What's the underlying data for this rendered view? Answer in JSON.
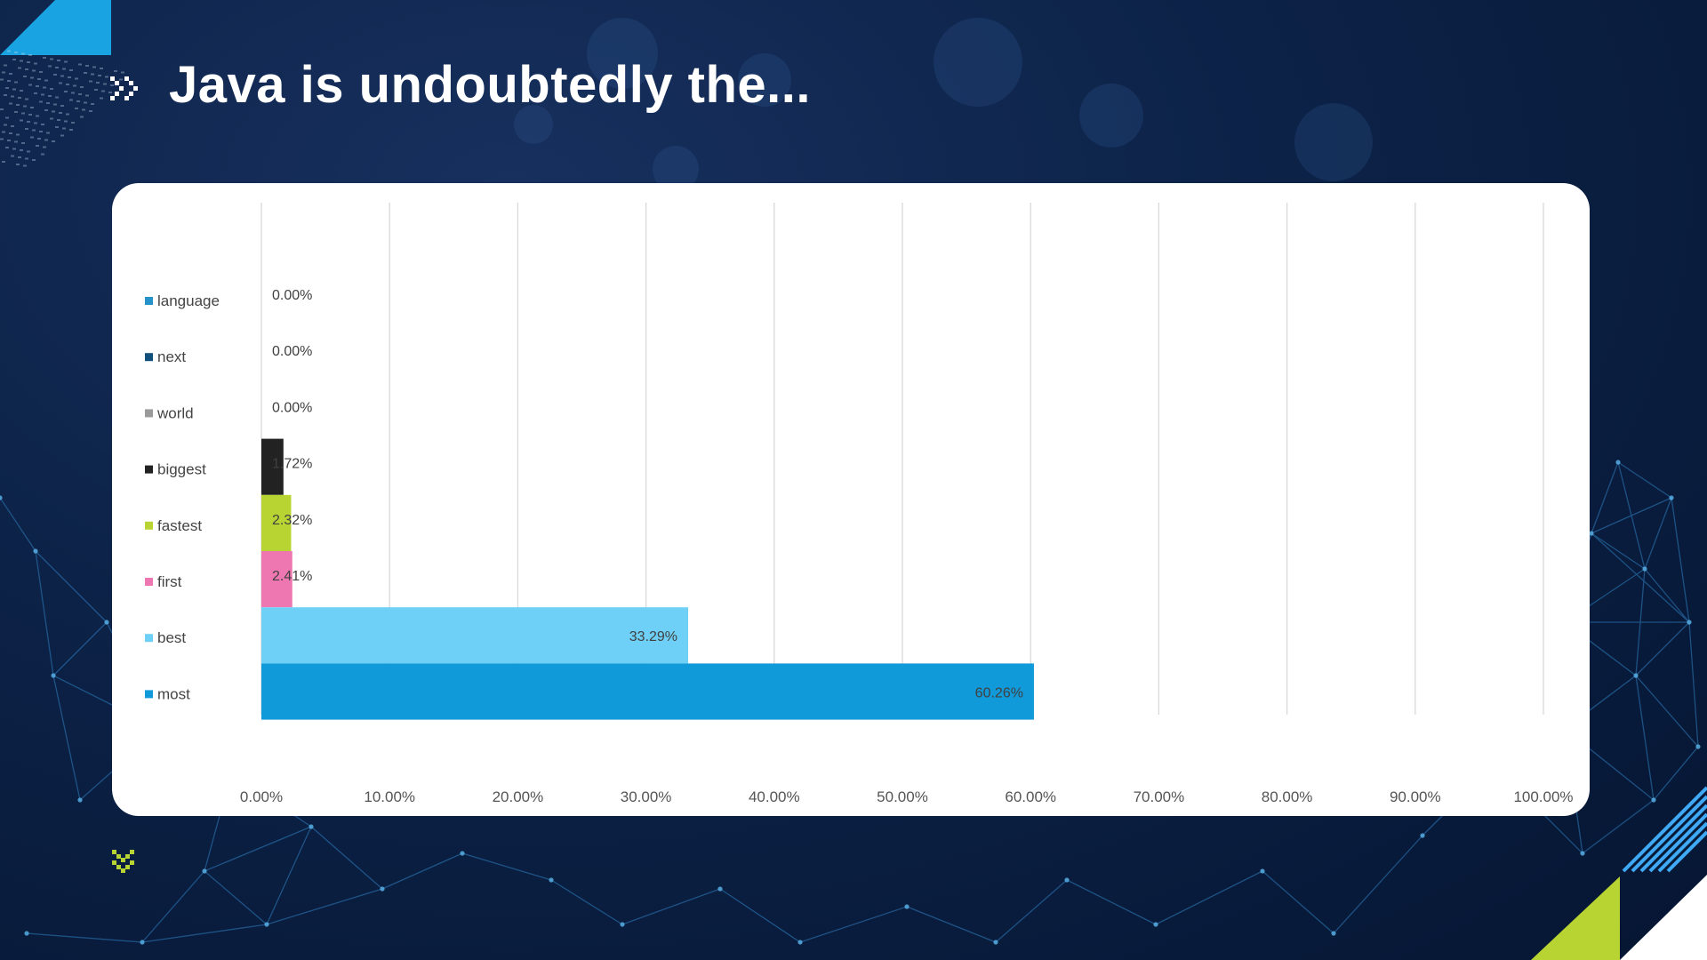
{
  "slide": {
    "title": "Java is undoubtedly the...",
    "accent_colors": {
      "blue": "#1aa3e2",
      "lime": "#b8d432",
      "light_blue": "#6ed0f6",
      "navy": "#0c2247"
    },
    "icons": [
      "double-chevron-right-icon",
      "double-chevron-down-icon"
    ]
  },
  "chart_data": {
    "type": "bar",
    "orientation": "horizontal",
    "categories": [
      "language",
      "next",
      "world",
      "biggest",
      "fastest",
      "first",
      "best",
      "most"
    ],
    "values": [
      0.0,
      0.0,
      0.0,
      1.72,
      2.32,
      2.41,
      33.29,
      60.26
    ],
    "data_labels": [
      "0.00%",
      "0.00%",
      "0.00%",
      "1.72%",
      "2.32%",
      "2.41%",
      "33.29%",
      "60.26%"
    ],
    "colors": [
      "#2593c9",
      "#10507a",
      "#9a9a9a",
      "#222222",
      "#b8d432",
      "#ef77b1",
      "#6ed0f6",
      "#119ad9"
    ],
    "xlim": [
      0,
      100
    ],
    "x_ticks": [
      "0.00%",
      "10.00%",
      "20.00%",
      "30.00%",
      "40.00%",
      "50.00%",
      "60.00%",
      "70.00%",
      "80.00%",
      "90.00%",
      "100.00%"
    ],
    "grid": "vertical",
    "legend": "left",
    "title": "",
    "xlabel": "",
    "ylabel": ""
  }
}
